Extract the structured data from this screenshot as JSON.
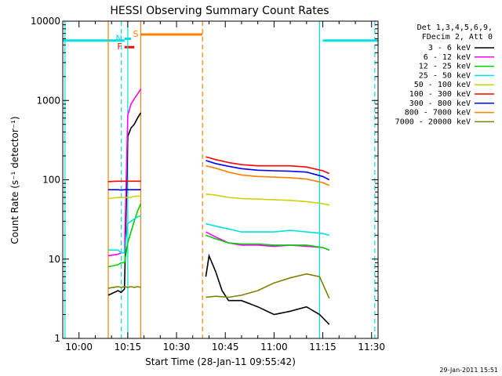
{
  "chart_data": {
    "type": "line",
    "title": "HESSI Observing Summary Count Rates",
    "xlabel": "Start Time (28-Jan-11 09:55:42)",
    "ylabel": "Count Rate (s⁻¹ detector⁻¹)",
    "y_scale": "log",
    "ylim": [
      1,
      10000
    ],
    "xlim": [
      "09:55",
      "11:32"
    ],
    "x_ticks": [
      "10:00",
      "10:15",
      "10:30",
      "10:45",
      "11:00",
      "11:15",
      "11:30"
    ],
    "y_ticks": [
      "1",
      "10",
      "100",
      "1000",
      "10000"
    ],
    "grid": false,
    "legend": {
      "placement": "right",
      "header": [
        "Det 1,3,4,5,6,9,",
        "FDecim 2, Att 0"
      ],
      "entries": [
        {
          "name": "3 - 6 keV",
          "color": "#000000"
        },
        {
          "name": "6 - 12 keV",
          "color": "#ff00ff"
        },
        {
          "name": "12 - 25 keV",
          "color": "#00d000"
        },
        {
          "name": "25 - 50 keV",
          "color": "#00e0e0"
        },
        {
          "name": "50 - 100 keV",
          "color": "#d0d000"
        },
        {
          "name": "100 - 300 keV",
          "color": "#ff0000"
        },
        {
          "name": "300 - 800 keV",
          "color": "#0000ff"
        },
        {
          "name": "800 - 7000 keV",
          "color": "#ff8000"
        },
        {
          "name": "7000 - 20000 keV",
          "color": "#808000"
        }
      ]
    },
    "series": [
      {
        "name": "3 - 6 keV",
        "color": "#000000",
        "segments": [
          {
            "x": [
              "10:09",
              "10:12",
              "10:13",
              "10:14",
              "10:15",
              "10:16",
              "10:17",
              "10:18",
              "10:19"
            ],
            "y": [
              3.5,
              4,
              3.8,
              4.2,
              350,
              450,
              500,
              600,
              700
            ]
          },
          {
            "x": [
              "10:39",
              "10:40",
              "10:42",
              "10:44",
              "10:46",
              "10:50",
              "10:55",
              "11:00",
              "11:05",
              "11:10",
              "11:14",
              "11:17"
            ],
            "y": [
              6,
              11,
              7,
              4,
              3,
              3,
              2.5,
              2,
              2.2,
              2.5,
              2,
              1.5
            ]
          }
        ]
      },
      {
        "name": "6 - 12 keV",
        "color": "#ff00ff",
        "segments": [
          {
            "x": [
              "10:09",
              "10:12",
              "10:13",
              "10:14",
              "10:15",
              "10:16",
              "10:17",
              "10:18",
              "10:19"
            ],
            "y": [
              11,
              11.5,
              12,
              12,
              650,
              900,
              1050,
              1200,
              1400
            ]
          },
          {
            "x": [
              "10:39",
              "10:42",
              "10:46",
              "10:50",
              "10:55",
              "11:00",
              "11:05",
              "11:10",
              "11:15",
              "11:17"
            ],
            "y": [
              22,
              19,
              16,
              15,
              15,
              14.5,
              15,
              14.5,
              14,
              13
            ]
          }
        ]
      },
      {
        "name": "12 - 25 keV",
        "color": "#00d000",
        "segments": [
          {
            "x": [
              "10:09",
              "10:12",
              "10:13",
              "10:14",
              "10:15",
              "10:16",
              "10:17",
              "10:18",
              "10:19"
            ],
            "y": [
              8,
              8.5,
              9,
              9,
              16,
              22,
              30,
              40,
              50
            ]
          },
          {
            "x": [
              "10:39",
              "10:42",
              "10:46",
              "10:50",
              "10:55",
              "11:00",
              "11:05",
              "11:10",
              "11:15",
              "11:17"
            ],
            "y": [
              20,
              18,
              16,
              15.5,
              15.5,
              15,
              15,
              15,
              14,
              13
            ]
          }
        ]
      },
      {
        "name": "25 - 50 keV",
        "color": "#00e0e0",
        "segments": [
          {
            "x": [
              "10:09",
              "10:12",
              "10:13",
              "10:14",
              "10:15",
              "10:16",
              "10:17",
              "10:18",
              "10:19"
            ],
            "y": [
              13,
              13,
              12,
              12,
              28,
              30,
              32,
              34,
              35
            ]
          },
          {
            "x": [
              "10:39",
              "10:42",
              "10:46",
              "10:50",
              "10:55",
              "11:00",
              "11:05",
              "11:10",
              "11:15",
              "11:17"
            ],
            "y": [
              28,
              26,
              24,
              22,
              22,
              22,
              23,
              22,
              21,
              20
            ]
          }
        ]
      },
      {
        "name": "50 - 100 keV",
        "color": "#d0d000",
        "segments": [
          {
            "x": [
              "10:09",
              "10:12",
              "10:13",
              "10:14",
              "10:15",
              "10:16",
              "10:17",
              "10:18",
              "10:19"
            ],
            "y": [
              58,
              60,
              60,
              60,
              60,
              60,
              62,
              62,
              62
            ]
          },
          {
            "x": [
              "10:39",
              "10:42",
              "10:46",
              "10:50",
              "10:55",
              "11:00",
              "11:05",
              "11:10",
              "11:15",
              "11:17"
            ],
            "y": [
              66,
              64,
              60,
              58,
              57,
              56,
              55,
              53,
              50,
              48
            ]
          }
        ]
      },
      {
        "name": "100 - 300 keV",
        "color": "#ff0000",
        "segments": [
          {
            "x": [
              "10:09",
              "10:12",
              "10:13",
              "10:14",
              "10:15",
              "10:16",
              "10:17",
              "10:18",
              "10:19"
            ],
            "y": [
              95,
              96,
              96,
              96,
              96,
              96,
              96,
              96,
              96
            ]
          },
          {
            "x": [
              "10:39",
              "10:42",
              "10:46",
              "10:50",
              "10:55",
              "11:00",
              "11:05",
              "11:10",
              "11:15",
              "11:17"
            ],
            "y": [
              195,
              180,
              165,
              155,
              150,
              150,
              150,
              145,
              130,
              120
            ]
          }
        ]
      },
      {
        "name": "300 - 800 keV",
        "color": "#0000ff",
        "segments": [
          {
            "x": [
              "10:09",
              "10:12",
              "10:13",
              "10:14",
              "10:15",
              "10:16",
              "10:17",
              "10:18",
              "10:19"
            ],
            "y": [
              75,
              75,
              74,
              75,
              75,
              75,
              75,
              75,
              75
            ]
          },
          {
            "x": [
              "10:39",
              "10:42",
              "10:46",
              "10:50",
              "10:55",
              "11:00",
              "11:05",
              "11:10",
              "11:15",
              "11:17"
            ],
            "y": [
              175,
              160,
              148,
              138,
              132,
              130,
              128,
              125,
              110,
              100
            ]
          }
        ]
      },
      {
        "name": "800 - 7000 keV",
        "color": "#ff8000",
        "segments": [
          {
            "x": [
              "10:39",
              "10:42",
              "10:46",
              "10:50",
              "10:55",
              "11:00",
              "11:05",
              "11:10",
              "11:15",
              "11:17"
            ],
            "y": [
              150,
              140,
              125,
              115,
              110,
              108,
              106,
              102,
              92,
              85
            ]
          }
        ]
      },
      {
        "name": "7000 - 20000 keV",
        "color": "#808000",
        "segments": [
          {
            "x": [
              "10:09",
              "10:12",
              "10:13",
              "10:14",
              "10:15",
              "10:16",
              "10:17",
              "10:18",
              "10:19"
            ],
            "y": [
              4.3,
              4.5,
              4.4,
              4.5,
              4.4,
              4.5,
              4.4,
              4.5,
              4.4
            ]
          },
          {
            "x": [
              "10:39",
              "10:42",
              "10:46",
              "10:50",
              "10:55",
              "11:00",
              "11:05",
              "11:10",
              "11:14",
              "11:17"
            ],
            "y": [
              3.3,
              3.4,
              3.3,
              3.5,
              4,
              5,
              5.8,
              6.5,
              6,
              3.2
            ]
          }
        ]
      }
    ],
    "flags": [
      {
        "label": "F",
        "color": "#ff0000",
        "x_start": "10:14",
        "x_end": "10:17",
        "y": 4700
      },
      {
        "label": "N",
        "color": "#00e0e0",
        "x_start": "10:14",
        "x_end": "10:16",
        "y": 6000
      },
      {
        "label": "S",
        "color": "#ff8000",
        "x_start": "10:19",
        "x_end": "10:38",
        "y": 6800
      },
      {
        "label": "",
        "color": "#00e0e0",
        "x_start": "09:55",
        "x_end": "10:14",
        "y": 5700
      },
      {
        "label": "",
        "color": "#00e0e0",
        "x_start": "11:15",
        "x_end": "11:32",
        "y": 5700
      }
    ],
    "vlines": [
      {
        "x": "09:55:42",
        "color": "#00e0e0",
        "style": "solid"
      },
      {
        "x": "10:09",
        "color": "#ff8000",
        "style": "solid"
      },
      {
        "x": "10:13",
        "color": "#00e0e0",
        "style": "dashed"
      },
      {
        "x": "10:15",
        "color": "#00e0e0",
        "style": "solid"
      },
      {
        "x": "10:19",
        "color": "#ff8000",
        "style": "solid"
      },
      {
        "x": "10:38",
        "color": "#ff8000",
        "style": "dashed"
      },
      {
        "x": "11:14",
        "color": "#00e0e0",
        "style": "solid"
      },
      {
        "x": "11:31",
        "color": "#00e0e0",
        "style": "dashed"
      }
    ],
    "footer": "29-Jan-2011 15:51"
  }
}
